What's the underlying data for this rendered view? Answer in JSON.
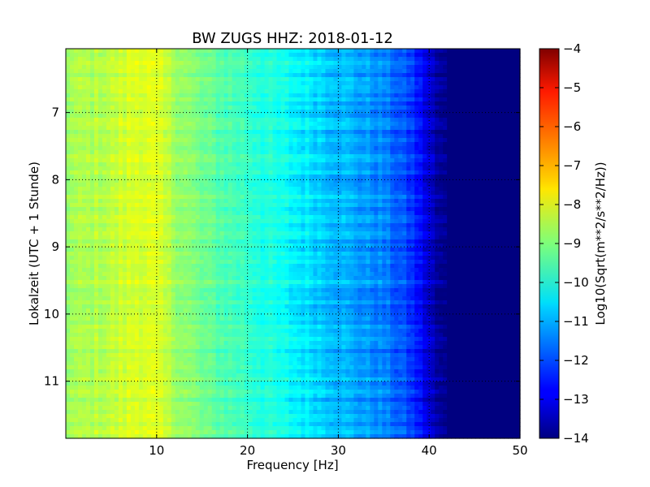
{
  "chart_data": {
    "type": "heatmap",
    "title": "BW ZUGS HHZ: 2018-01-12",
    "xlabel": "Frequency [Hz]",
    "ylabel": "Lokalzeit (UTC + 1 Stunde)",
    "xlim": [
      0,
      50
    ],
    "ylim": [
      6.05,
      11.85
    ],
    "y_inverted": true,
    "x_ticks": [
      10,
      20,
      30,
      40,
      50
    ],
    "y_ticks": [
      7,
      8,
      9,
      10,
      11
    ],
    "grid": true,
    "colormap": "jet",
    "colorbar": {
      "label": "Log10(Sqrt(m**2/s**2/Hz))",
      "range": [
        -14,
        -4
      ],
      "ticks": [
        -4,
        -5,
        -6,
        -7,
        -8,
        -9,
        -10,
        -11,
        -12,
        -13,
        -14
      ]
    },
    "spectral_profile": {
      "frequency_hz": [
        0,
        5,
        8,
        10,
        12,
        15,
        20,
        25,
        30,
        35,
        38,
        40,
        41,
        42,
        50
      ],
      "log10_amplitude": [
        -8.7,
        -8.4,
        -8.05,
        -8.2,
        -8.6,
        -9.2,
        -9.7,
        -10.3,
        -10.9,
        -11.5,
        -12.2,
        -13.2,
        -13.8,
        -14.0,
        -14.0
      ]
    }
  }
}
